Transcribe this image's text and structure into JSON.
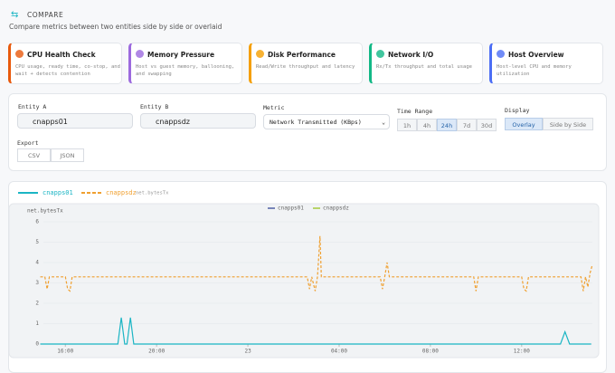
{
  "header": {
    "title": "COMPARE",
    "subtitle": "Compare metrics between two entities side by side or overlaid"
  },
  "cards": [
    {
      "title": "CPU Health Check",
      "description": "CPU usage, ready time, co-stop, and wait + detects contention",
      "color": "#e8590c"
    },
    {
      "title": "Memory Pressure",
      "description": "Host vs guest memory, ballooning, and swapping",
      "color": "#9c6ade"
    },
    {
      "title": "Disk Performance",
      "description": "Read/Write throughput and latency",
      "color": "#f59f00"
    },
    {
      "title": "Network I/O",
      "description": "Rx/Tx throughput and total usage",
      "color": "#12b886"
    },
    {
      "title": "Host Overview",
      "description": "Host-level CPU and memory utilization",
      "color": "#4c6ef5"
    }
  ],
  "form": {
    "entity_a": {
      "label": "Entity A",
      "value": "cnapps01"
    },
    "entity_b": {
      "label": "Entity B",
      "value": "cnappsdz"
    },
    "metric": {
      "label": "Metric",
      "value": "Network Transmitted (KBps)"
    },
    "time_range": {
      "label": "Time Range",
      "options": [
        "1h",
        "4h",
        "24h",
        "7d",
        "30d"
      ],
      "active": 2
    },
    "display": {
      "label": "Display",
      "options": [
        "Overlay",
        "Side by Side"
      ],
      "active": 0
    },
    "export": {
      "label": "Export",
      "options": [
        "CSV",
        "JSON"
      ]
    }
  },
  "chart_data": {
    "type": "line",
    "y_label": "net.bytesTx",
    "series": [
      {
        "name": "cnapps01",
        "color": "#1bb5c4",
        "legend_color": "#4e5fa3",
        "dashed": false,
        "x": [
          14.9,
          18.3,
          18.45,
          18.6,
          18.7,
          18.85,
          19.0,
          37.7,
          37.9,
          38.1,
          39.05
        ],
        "values": [
          0,
          0,
          1.3,
          0,
          0,
          1.3,
          0,
          0,
          0.6,
          0,
          0
        ]
      },
      {
        "name": "cnappsdz",
        "color": "#f0a030",
        "legend_color": "#a4c93c",
        "dashed": true,
        "x": [
          14.9,
          15.1,
          15.2,
          15.3,
          16.0,
          16.1,
          16.2,
          16.3,
          26.6,
          26.7,
          26.8,
          26.95,
          27.05,
          27.1,
          27.16,
          27.22,
          29.8,
          29.9,
          30.0,
          30.1,
          30.2,
          33.9,
          34.0,
          34.1,
          36.0,
          36.1,
          36.2,
          36.3,
          38.6,
          38.7,
          38.8,
          38.9,
          39.0,
          39.1
        ],
        "values": [
          3.3,
          3.3,
          2.7,
          3.3,
          3.3,
          2.7,
          2.6,
          3.3,
          3.3,
          2.7,
          3.3,
          2.6,
          3.3,
          4.2,
          5.3,
          3.3,
          3.3,
          2.7,
          3.3,
          4.0,
          3.3,
          3.3,
          2.6,
          3.3,
          3.3,
          2.7,
          2.6,
          3.3,
          3.3,
          2.6,
          3.3,
          2.8,
          3.5,
          3.9
        ]
      }
    ],
    "xlim": [
      14.84,
      39.1
    ],
    "xticks": [
      {
        "value": 16,
        "label": "16:00"
      },
      {
        "value": 20,
        "label": "20:00"
      },
      {
        "value": 24,
        "label": "23"
      },
      {
        "value": 28,
        "label": "04:00"
      },
      {
        "value": 32,
        "label": "08:00"
      },
      {
        "value": 36,
        "label": "12:00"
      }
    ],
    "ylim": [
      0,
      6.7
    ],
    "yticks": [
      0,
      1,
      2,
      3,
      4,
      5,
      6
    ],
    "grid": true
  }
}
